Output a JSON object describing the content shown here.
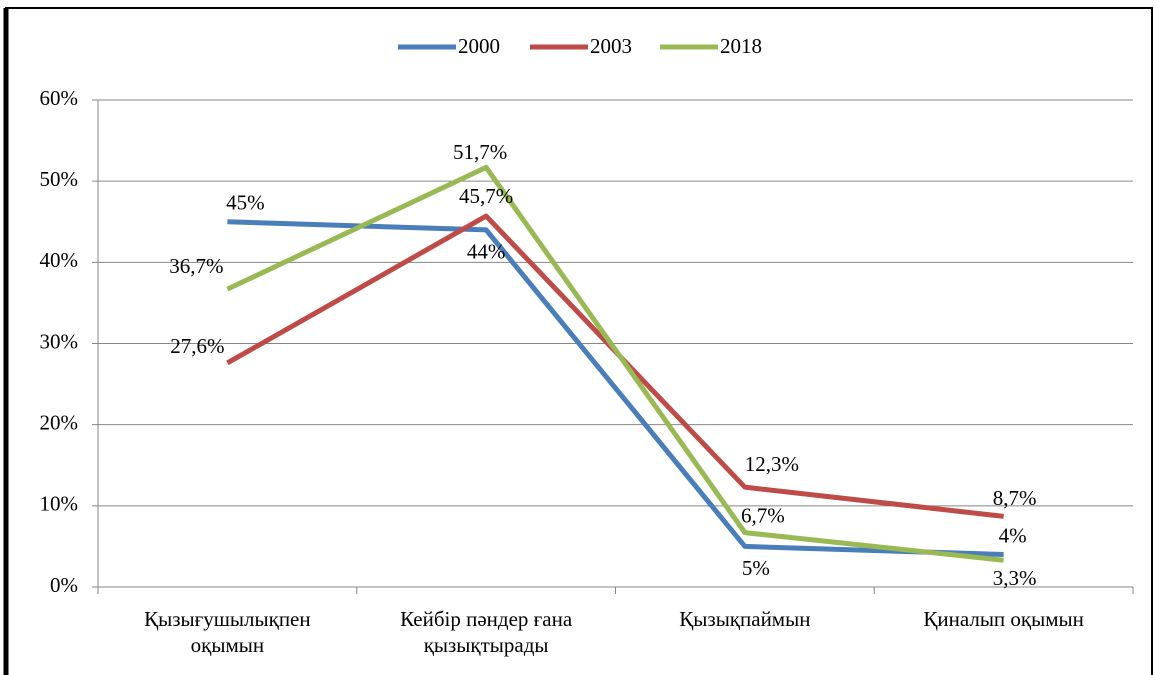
{
  "chart_data": {
    "type": "line",
    "categories": [
      "Қызығушылықпен оқымын",
      "Кейбір пәндер ғана қызықтырады",
      "Қызықпаймын",
      "Қиналып оқымын"
    ],
    "series": [
      {
        "name": "2000",
        "color": "#4a7ebb",
        "values": [
          45,
          44,
          5,
          4
        ],
        "value_labels": [
          "45%",
          "44%",
          "5%",
          "4%"
        ]
      },
      {
        "name": "2003",
        "color": "#be4b48",
        "values": [
          27.6,
          45.7,
          12.3,
          8.7
        ],
        "value_labels": [
          "27,6%",
          "45,7%",
          "12,3%",
          "8,7%"
        ]
      },
      {
        "name": "2018",
        "color": "#98b954",
        "values": [
          36.7,
          51.7,
          6.7,
          3.3
        ],
        "value_labels": [
          "36,7%",
          "51,7%",
          "6,7%",
          "3,3%"
        ]
      }
    ],
    "ylim": [
      0,
      60
    ],
    "yticks": [
      {
        "value": 0,
        "label": "0%"
      },
      {
        "value": 10,
        "label": "10%"
      },
      {
        "value": 20,
        "label": "20%"
      },
      {
        "value": 30,
        "label": "30%"
      },
      {
        "value": 40,
        "label": "40%"
      },
      {
        "value": 50,
        "label": "50%"
      },
      {
        "value": 60,
        "label": "60%"
      }
    ],
    "grid": true,
    "legend": "top"
  }
}
